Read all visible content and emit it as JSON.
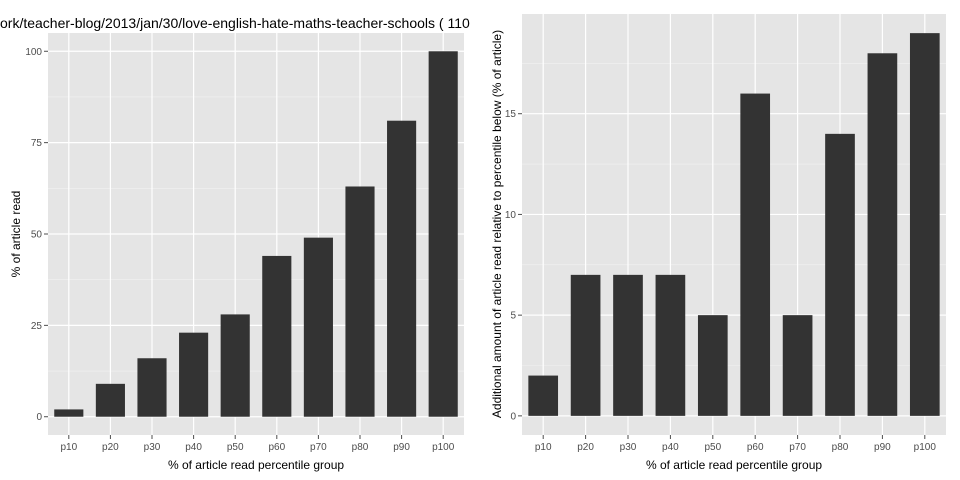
{
  "colors": {
    "panel_bg": "#e5e5e5",
    "grid_major": "#ffffff",
    "grid_minor": "#f2f2f2",
    "bar": "#333333",
    "tick_text": "#4d4d4d"
  },
  "chart_data": [
    {
      "type": "bar",
      "title": "ork/teacher-blog/2013/jan/30/love-english-hate-maths-teacher-schools ( 110",
      "xlabel": "% of article read percentile group",
      "ylabel": "% of article read",
      "categories": [
        "p10",
        "p20",
        "p30",
        "p40",
        "p50",
        "p60",
        "p70",
        "p80",
        "p90",
        "p100"
      ],
      "values": [
        2,
        9,
        16,
        23,
        28,
        44,
        49,
        63,
        81,
        100
      ],
      "ylim": [
        -5,
        105
      ],
      "yticks": [
        0,
        25,
        50,
        75,
        100
      ],
      "ytick_labels": [
        "0",
        "25",
        "50",
        "75",
        "100"
      ],
      "grid": true
    },
    {
      "type": "bar",
      "title": "",
      "xlabel": "% of article read percentile group",
      "ylabel": "Additional amount of article read relative to percentile below (% of article)",
      "categories": [
        "p10",
        "p20",
        "p30",
        "p40",
        "p50",
        "p60",
        "p70",
        "p80",
        "p90",
        "p100"
      ],
      "values": [
        2,
        7,
        7,
        7,
        5,
        16,
        5,
        14,
        18,
        19
      ],
      "ylim": [
        -0.95,
        19.95
      ],
      "yticks": [
        0,
        5,
        10,
        15
      ],
      "ytick_labels": [
        "0",
        "5",
        "10",
        "15"
      ],
      "grid": true
    }
  ]
}
